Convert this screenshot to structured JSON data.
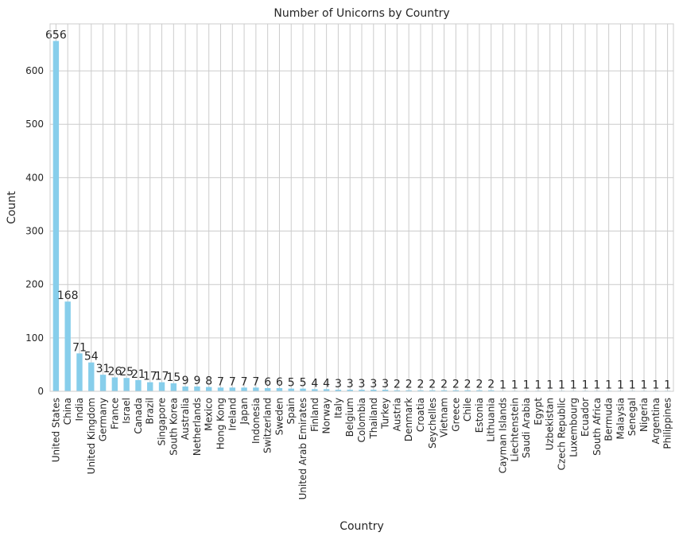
{
  "chart_data": {
    "type": "bar",
    "title": "Number of Unicorns by Country",
    "xlabel": "Country",
    "ylabel": "Count",
    "ylim": [
      0,
      688
    ],
    "yticks": [
      0,
      100,
      200,
      300,
      400,
      500,
      600
    ],
    "grid": true,
    "bar_color": "#87ceeb",
    "categories": [
      "United States",
      "China",
      "India",
      "United Kingdom",
      "Germany",
      "France",
      "Israel",
      "Canada",
      "Brazil",
      "Singapore",
      "South Korea",
      "Australia",
      "Netherlands",
      "Mexico",
      "Hong Kong",
      "Ireland",
      "Japan",
      "Indonesia",
      "Switzerland",
      "Sweden",
      "Spain",
      "United Arab Emirates",
      "Finland",
      "Norway",
      "Italy",
      "Belgium",
      "Colombia",
      "Thailand",
      "Turkey",
      "Austria",
      "Denmark",
      "Croatia",
      "Seychelles",
      "Vietnam",
      "Greece",
      "Chile",
      "Estonia",
      "Lithuania",
      "Cayman Islands",
      "Liechtenstein",
      "Saudi Arabia",
      "Egypt",
      "Uzbekistan",
      "Czech Republic",
      "Luxembourg",
      "Ecuador",
      "South Africa",
      "Bermuda",
      "Malaysia",
      "Senegal",
      "Nigeria",
      "Argentina",
      "Philippines"
    ],
    "values": [
      656,
      168,
      71,
      54,
      31,
      26,
      25,
      21,
      17,
      17,
      15,
      9,
      9,
      8,
      7,
      7,
      7,
      7,
      6,
      6,
      5,
      5,
      4,
      4,
      3,
      3,
      3,
      3,
      3,
      2,
      2,
      2,
      2,
      2,
      2,
      2,
      2,
      2,
      1,
      1,
      1,
      1,
      1,
      1,
      1,
      1,
      1,
      1,
      1,
      1,
      1,
      1,
      1
    ]
  }
}
